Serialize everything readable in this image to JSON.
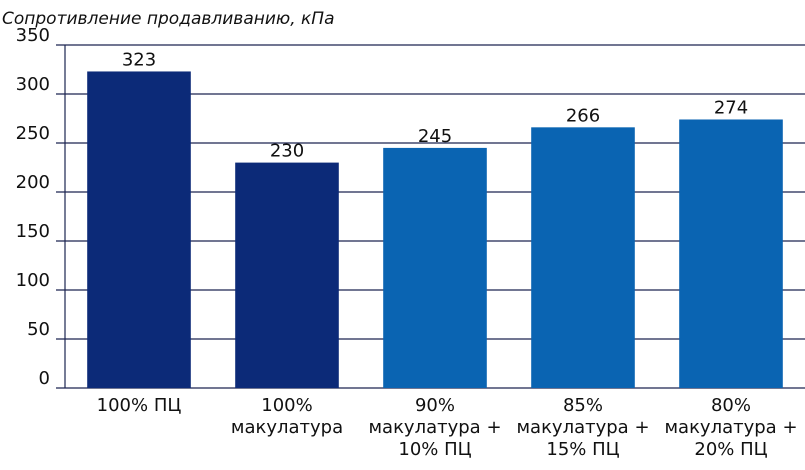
{
  "chart_data": {
    "type": "bar",
    "title": "Сопротивление продавливанию, кПа",
    "categories": [
      [
        "100% ПЦ"
      ],
      [
        "100%",
        "макулатура"
      ],
      [
        "90%",
        "макулатура +",
        "10% ПЦ"
      ],
      [
        "85%",
        "макулатура +",
        "15% ПЦ"
      ],
      [
        "80%",
        "макулатура +",
        "20% ПЦ"
      ]
    ],
    "values": [
      323,
      230,
      245,
      266,
      274
    ],
    "colors": [
      "#0c2a78",
      "#0c2a78",
      "#0a64b2",
      "#0a64b2",
      "#0a64b2"
    ],
    "ylim": [
      0,
      350
    ],
    "yticks": [
      0,
      50,
      100,
      150,
      200,
      250,
      300,
      350
    ],
    "grid": true
  }
}
